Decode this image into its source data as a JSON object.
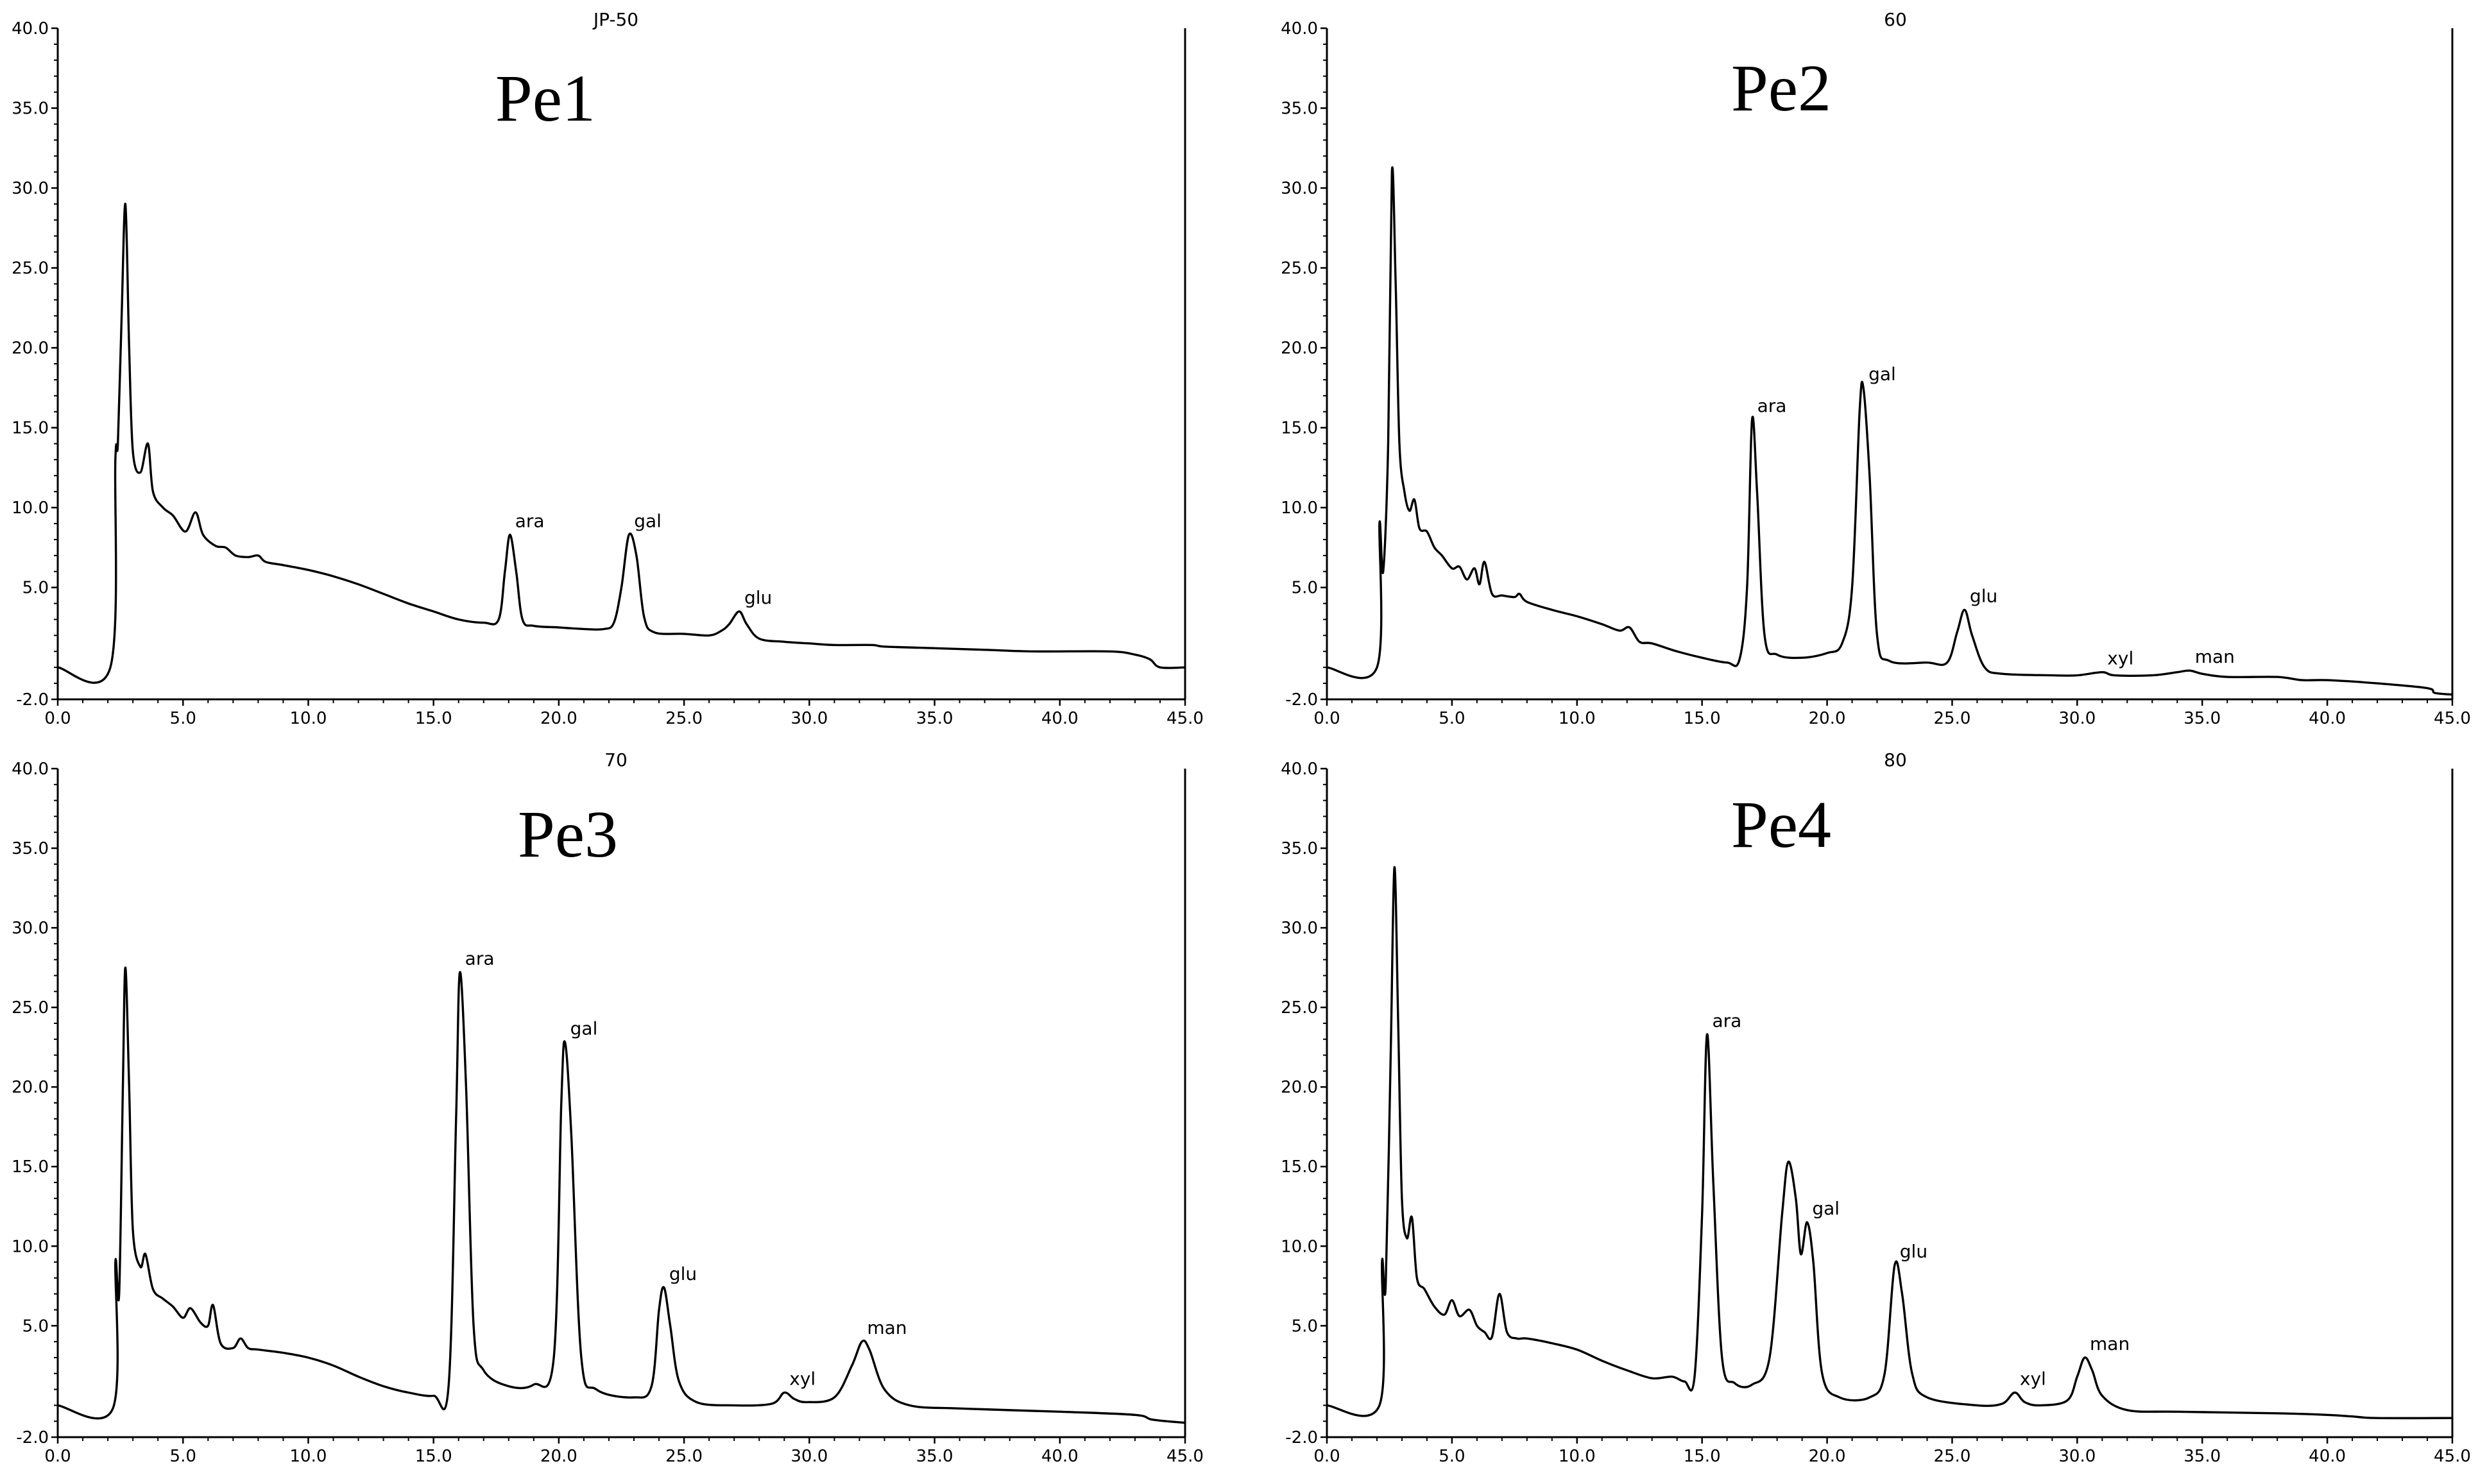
{
  "chart_data": [
    {
      "type": "line",
      "title": "Pe1",
      "subtitle": "JP-50",
      "xlim": [
        0,
        45
      ],
      "ylim": [
        -2,
        40
      ],
      "x_ticks": [
        "0.0",
        "5.0",
        "10.0",
        "15.0",
        "20.0",
        "25.0",
        "30.0",
        "35.0",
        "40.0",
        "45.0"
      ],
      "y_ticks": [
        "-2.0",
        "5.0",
        "10.0",
        "15.0",
        "20.0",
        "25.0",
        "30.0",
        "35.0",
        "40.0"
      ],
      "baseline": 0,
      "points": [
        [
          0,
          0
        ],
        [
          2.1,
          0
        ],
        [
          2.3,
          13
        ],
        [
          2.4,
          14
        ],
        [
          2.55,
          22
        ],
        [
          2.7,
          29
        ],
        [
          2.85,
          20
        ],
        [
          3.0,
          13.5
        ],
        [
          3.3,
          12.2
        ],
        [
          3.6,
          14
        ],
        [
          3.8,
          11
        ],
        [
          4.2,
          10
        ],
        [
          4.6,
          9.5
        ],
        [
          5.1,
          8.5
        ],
        [
          5.5,
          9.7
        ],
        [
          5.8,
          8.3
        ],
        [
          6.3,
          7.6
        ],
        [
          6.7,
          7.5
        ],
        [
          7.1,
          7
        ],
        [
          7.6,
          6.9
        ],
        [
          8.0,
          7
        ],
        [
          8.3,
          6.6
        ],
        [
          9,
          6.4
        ],
        [
          10,
          6.1
        ],
        [
          11,
          5.7
        ],
        [
          12,
          5.2
        ],
        [
          13,
          4.6
        ],
        [
          14,
          4
        ],
        [
          15,
          3.5
        ],
        [
          16,
          3
        ],
        [
          17,
          2.8
        ],
        [
          17.6,
          3
        ],
        [
          17.85,
          6
        ],
        [
          18.05,
          8.3
        ],
        [
          18.3,
          6
        ],
        [
          18.55,
          3
        ],
        [
          19,
          2.6
        ],
        [
          20,
          2.5
        ],
        [
          21,
          2.4
        ],
        [
          21.8,
          2.4
        ],
        [
          22.2,
          2.8
        ],
        [
          22.5,
          5
        ],
        [
          22.8,
          8.3
        ],
        [
          23.1,
          7
        ],
        [
          23.4,
          3.2
        ],
        [
          23.8,
          2.2
        ],
        [
          25,
          2.1
        ],
        [
          26,
          2
        ],
        [
          26.5,
          2.3
        ],
        [
          26.8,
          2.7
        ],
        [
          27.2,
          3.5
        ],
        [
          27.5,
          2.7
        ],
        [
          28,
          1.8
        ],
        [
          29,
          1.6
        ],
        [
          30,
          1.5
        ],
        [
          31,
          1.4
        ],
        [
          32.5,
          1.4
        ],
        [
          33,
          1.3
        ],
        [
          35,
          1.2
        ],
        [
          37,
          1.1
        ],
        [
          39,
          1
        ],
        [
          42,
          1
        ],
        [
          43,
          0.8
        ],
        [
          43.6,
          0.5
        ],
        [
          44,
          0
        ],
        [
          45,
          0
        ]
      ],
      "peaks": [
        {
          "label": "ara",
          "x": 18.05,
          "y": 8.3
        },
        {
          "label": "gal",
          "x": 22.8,
          "y": 8.3
        },
        {
          "label": "glu",
          "x": 27.2,
          "y": 3.5
        }
      ]
    },
    {
      "type": "line",
      "title": "Pe2",
      "subtitle": "60",
      "xlim": [
        0,
        45
      ],
      "ylim": [
        -2,
        40
      ],
      "x_ticks": [
        "0.0",
        "5.0",
        "10.0",
        "15.0",
        "20.0",
        "25.0",
        "30.0",
        "35.0",
        "40.0",
        "45.0"
      ],
      "y_ticks": [
        "-2.0",
        "5.0",
        "10.0",
        "15.0",
        "20.0",
        "25.0",
        "30.0",
        "35.0",
        "40.0"
      ],
      "baseline": 0,
      "points": [
        [
          0,
          0
        ],
        [
          2.0,
          0
        ],
        [
          2.1,
          9
        ],
        [
          2.25,
          6
        ],
        [
          2.45,
          14
        ],
        [
          2.6,
          31
        ],
        [
          2.75,
          24
        ],
        [
          2.9,
          14
        ],
        [
          3.1,
          11
        ],
        [
          3.3,
          9.8
        ],
        [
          3.5,
          10.5
        ],
        [
          3.7,
          8.7
        ],
        [
          4.0,
          8.5
        ],
        [
          4.3,
          7.5
        ],
        [
          4.6,
          7
        ],
        [
          5,
          6.2
        ],
        [
          5.3,
          6.3
        ],
        [
          5.6,
          5.5
        ],
        [
          5.9,
          6.2
        ],
        [
          6.1,
          5.2
        ],
        [
          6.3,
          6.6
        ],
        [
          6.6,
          4.6
        ],
        [
          7,
          4.5
        ],
        [
          7.5,
          4.4
        ],
        [
          7.7,
          4.6
        ],
        [
          8,
          4.1
        ],
        [
          9,
          3.6
        ],
        [
          10,
          3.2
        ],
        [
          11,
          2.7
        ],
        [
          11.7,
          2.3
        ],
        [
          12.1,
          2.5
        ],
        [
          12.5,
          1.6
        ],
        [
          13,
          1.5
        ],
        [
          14,
          1
        ],
        [
          15,
          0.6
        ],
        [
          16,
          0.3
        ],
        [
          16.5,
          0.5
        ],
        [
          16.8,
          5
        ],
        [
          17.0,
          15.5
        ],
        [
          17.2,
          11
        ],
        [
          17.5,
          2
        ],
        [
          18,
          0.8
        ],
        [
          19,
          0.6
        ],
        [
          20,
          0.9
        ],
        [
          20.6,
          1.5
        ],
        [
          21.0,
          5
        ],
        [
          21.3,
          16
        ],
        [
          21.45,
          17.5
        ],
        [
          21.7,
          12
        ],
        [
          22,
          2
        ],
        [
          22.5,
          0.4
        ],
        [
          24,
          0.3
        ],
        [
          24.8,
          0.3
        ],
        [
          25.2,
          2.2
        ],
        [
          25.5,
          3.6
        ],
        [
          25.8,
          2
        ],
        [
          26.3,
          0
        ],
        [
          27,
          -0.4
        ],
        [
          29,
          -0.5
        ],
        [
          30,
          -0.5
        ],
        [
          31.0,
          -0.3
        ],
        [
          31.5,
          -0.5
        ],
        [
          33,
          -0.5
        ],
        [
          34,
          -0.3
        ],
        [
          34.5,
          -0.2
        ],
        [
          35,
          -0.4
        ],
        [
          36,
          -0.6
        ],
        [
          38,
          -0.6
        ],
        [
          39,
          -0.8
        ],
        [
          40,
          -0.8
        ],
        [
          42,
          -1
        ],
        [
          44,
          -1.3
        ],
        [
          44.3,
          -1.6
        ],
        [
          45,
          -1.7
        ]
      ],
      "peaks": [
        {
          "label": "ara",
          "x": 17.0,
          "y": 15.5
        },
        {
          "label": "gal",
          "x": 21.45,
          "y": 17.5
        },
        {
          "label": "glu",
          "x": 25.5,
          "y": 3.6
        },
        {
          "label": "xyl",
          "x": 31.0,
          "y": -0.3
        },
        {
          "label": "man",
          "x": 34.5,
          "y": -0.2
        }
      ]
    },
    {
      "type": "line",
      "title": "Pe3",
      "subtitle": "70",
      "xlim": [
        0,
        45
      ],
      "ylim": [
        -2,
        40
      ],
      "x_ticks": [
        "0.0",
        "5.0",
        "10.0",
        "15.0",
        "20.0",
        "25.0",
        "30.0",
        "35.0",
        "40.0",
        "45.0"
      ],
      "y_ticks": [
        "-2.0",
        "5.0",
        "10.0",
        "15.0",
        "20.0",
        "25.0",
        "30.0",
        "35.0",
        "40.0"
      ],
      "baseline": 0,
      "points": [
        [
          0,
          0
        ],
        [
          2.2,
          -0.2
        ],
        [
          2.3,
          9
        ],
        [
          2.45,
          7
        ],
        [
          2.6,
          20
        ],
        [
          2.7,
          27.5
        ],
        [
          2.85,
          20
        ],
        [
          3.0,
          11
        ],
        [
          3.3,
          8.7
        ],
        [
          3.5,
          9.5
        ],
        [
          3.8,
          7.3
        ],
        [
          4.2,
          6.7
        ],
        [
          4.6,
          6.2
        ],
        [
          5.0,
          5.5
        ],
        [
          5.3,
          6.1
        ],
        [
          5.7,
          5.2
        ],
        [
          6.0,
          5
        ],
        [
          6.2,
          6.3
        ],
        [
          6.5,
          3.9
        ],
        [
          7,
          3.6
        ],
        [
          7.3,
          4.2
        ],
        [
          7.6,
          3.6
        ],
        [
          8,
          3.5
        ],
        [
          9,
          3.3
        ],
        [
          10,
          3
        ],
        [
          11,
          2.5
        ],
        [
          12,
          1.8
        ],
        [
          13,
          1.2
        ],
        [
          14,
          0.8
        ],
        [
          15,
          0.6
        ],
        [
          15.6,
          1.2
        ],
        [
          15.9,
          18
        ],
        [
          16.05,
          27.2
        ],
        [
          16.3,
          20
        ],
        [
          16.6,
          5
        ],
        [
          17,
          2.2
        ],
        [
          18,
          1.2
        ],
        [
          19,
          1.3
        ],
        [
          19.8,
          3
        ],
        [
          20.1,
          19
        ],
        [
          20.25,
          22.8
        ],
        [
          20.5,
          17
        ],
        [
          20.9,
          3
        ],
        [
          21.5,
          1
        ],
        [
          23,
          0.5
        ],
        [
          23.7,
          1.2
        ],
        [
          24.0,
          6
        ],
        [
          24.2,
          7.4
        ],
        [
          24.45,
          5
        ],
        [
          24.8,
          1.5
        ],
        [
          25.5,
          0.2
        ],
        [
          27,
          0
        ],
        [
          28.5,
          0.1
        ],
        [
          29.0,
          0.8
        ],
        [
          29.4,
          0.4
        ],
        [
          29.9,
          0.2
        ],
        [
          31,
          0.5
        ],
        [
          31.7,
          2.5
        ],
        [
          32.1,
          4
        ],
        [
          32.4,
          3.5
        ],
        [
          33,
          1
        ],
        [
          34,
          0
        ],
        [
          36,
          -0.2
        ],
        [
          40,
          -0.4
        ],
        [
          43,
          -0.6
        ],
        [
          43.7,
          -0.9
        ],
        [
          45,
          -1.1
        ]
      ],
      "peaks": [
        {
          "label": "ara",
          "x": 16.05,
          "y": 27.2
        },
        {
          "label": "gal",
          "x": 20.25,
          "y": 22.8
        },
        {
          "label": "glu",
          "x": 24.2,
          "y": 7.4
        },
        {
          "label": "xyl",
          "x": 29.0,
          "y": 0.8
        },
        {
          "label": "man",
          "x": 32.1,
          "y": 4.0
        }
      ]
    },
    {
      "type": "line",
      "title": "Pe4",
      "subtitle": "80",
      "xlim": [
        0,
        45
      ],
      "ylim": [
        -2,
        40
      ],
      "x_ticks": [
        "0.0",
        "5.0",
        "10.0",
        "15.0",
        "20.0",
        "25.0",
        "30.0",
        "35.0",
        "40.0",
        "45.0"
      ],
      "y_ticks": [
        "-2.0",
        "5.0",
        "10.0",
        "15.0",
        "20.0",
        "25.0",
        "30.0",
        "35.0",
        "40.0"
      ],
      "baseline": 0,
      "points": [
        [
          0,
          0
        ],
        [
          2.1,
          0
        ],
        [
          2.2,
          9
        ],
        [
          2.35,
          7.5
        ],
        [
          2.55,
          22
        ],
        [
          2.7,
          33.8
        ],
        [
          2.85,
          24
        ],
        [
          3.0,
          13
        ],
        [
          3.2,
          10.5
        ],
        [
          3.4,
          11.8
        ],
        [
          3.6,
          8
        ],
        [
          3.9,
          7.3
        ],
        [
          4.3,
          6.2
        ],
        [
          4.7,
          5.7
        ],
        [
          5.0,
          6.6
        ],
        [
          5.3,
          5.6
        ],
        [
          5.7,
          6
        ],
        [
          6.0,
          5
        ],
        [
          6.3,
          4.6
        ],
        [
          6.6,
          4.3
        ],
        [
          6.9,
          7
        ],
        [
          7.2,
          4.6
        ],
        [
          7.6,
          4.2
        ],
        [
          8,
          4.2
        ],
        [
          9,
          3.9
        ],
        [
          10,
          3.5
        ],
        [
          11,
          2.8
        ],
        [
          12,
          2.2
        ],
        [
          13,
          1.7
        ],
        [
          13.8,
          1.8
        ],
        [
          14.3,
          1.5
        ],
        [
          14.7,
          1.8
        ],
        [
          15.0,
          12
        ],
        [
          15.2,
          23.3
        ],
        [
          15.45,
          14
        ],
        [
          15.8,
          3
        ],
        [
          16.3,
          1.4
        ],
        [
          17,
          1.3
        ],
        [
          17.7,
          3
        ],
        [
          18.2,
          12
        ],
        [
          18.45,
          15.3
        ],
        [
          18.75,
          13
        ],
        [
          18.95,
          9.5
        ],
        [
          19.2,
          11.5
        ],
        [
          19.45,
          9
        ],
        [
          19.8,
          2
        ],
        [
          20.5,
          0.5
        ],
        [
          21.7,
          0.5
        ],
        [
          22.3,
          2
        ],
        [
          22.7,
          8.8
        ],
        [
          23.0,
          7
        ],
        [
          23.4,
          2
        ],
        [
          24,
          0.5
        ],
        [
          26,
          0
        ],
        [
          27,
          0.1
        ],
        [
          27.5,
          0.8
        ],
        [
          27.9,
          0.2
        ],
        [
          28.5,
          0
        ],
        [
          29.6,
          0.3
        ],
        [
          30.0,
          1.8
        ],
        [
          30.3,
          3
        ],
        [
          30.6,
          2.2
        ],
        [
          31,
          0.6
        ],
        [
          32,
          -0.3
        ],
        [
          34,
          -0.4
        ],
        [
          38,
          -0.5
        ],
        [
          40,
          -0.6
        ],
        [
          41,
          -0.7
        ],
        [
          42,
          -0.8
        ],
        [
          45,
          -0.8
        ]
      ],
      "peaks": [
        {
          "label": "ara",
          "x": 15.2,
          "y": 23.3
        },
        {
          "label": "gal",
          "x": 19.2,
          "y": 11.5
        },
        {
          "label": "glu",
          "x": 22.7,
          "y": 8.8
        },
        {
          "label": "xyl",
          "x": 27.5,
          "y": 0.8
        },
        {
          "label": "man",
          "x": 30.3,
          "y": 3.0
        }
      ]
    }
  ]
}
